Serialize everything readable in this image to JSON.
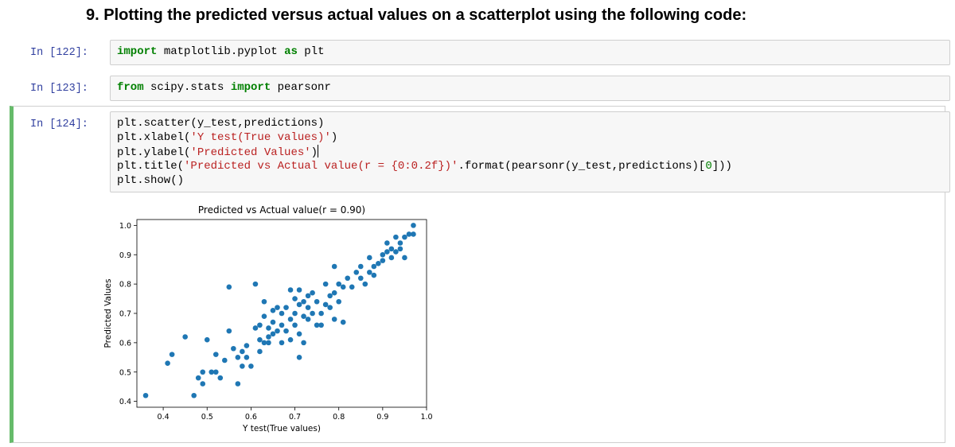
{
  "heading": "9. Plotting the predicted versus actual values on a scatterplot using the following code:",
  "cells": [
    {
      "prompt": "In [122]:",
      "lines": [
        [
          {
            "t": "import",
            "c": "kw"
          },
          {
            "t": " matplotlib.pyplot ",
            "c": ""
          },
          {
            "t": "as",
            "c": "kw"
          },
          {
            "t": " plt",
            "c": ""
          }
        ]
      ]
    },
    {
      "prompt": "In [123]:",
      "lines": [
        [
          {
            "t": "from",
            "c": "kw"
          },
          {
            "t": " scipy.stats ",
            "c": ""
          },
          {
            "t": "import",
            "c": "kw"
          },
          {
            "t": " pearsonr",
            "c": ""
          }
        ]
      ]
    },
    {
      "prompt": "In [124]:",
      "lines": [
        [
          {
            "t": "plt.scatter(y_test,predictions)",
            "c": ""
          }
        ],
        [
          {
            "t": "plt.xlabel(",
            "c": ""
          },
          {
            "t": "'Y test(True values)'",
            "c": "str"
          },
          {
            "t": ")",
            "c": ""
          }
        ],
        [
          {
            "t": "plt.ylabel(",
            "c": ""
          },
          {
            "t": "'Predicted Values'",
            "c": "str"
          },
          {
            "t": ")",
            "c": ""
          }
        ],
        [
          {
            "t": "plt.title(",
            "c": ""
          },
          {
            "t": "'Predicted vs Actual value(r = {0:0.2f})'",
            "c": "str"
          },
          {
            "t": ".format(pearsonr(y_test,predictions)[",
            "c": ""
          },
          {
            "t": "0",
            "c": "num"
          },
          {
            "t": "]))",
            "c": ""
          }
        ],
        [
          {
            "t": "plt.show()",
            "c": ""
          }
        ]
      ]
    }
  ],
  "chart_data": {
    "type": "scatter",
    "title": "Predicted vs Actual value(r = 0.90)",
    "xlabel": "Y test(True values)",
    "ylabel": "Predicted Values",
    "xlim": [
      0.34,
      1.0
    ],
    "ylim": [
      0.38,
      1.02
    ],
    "xticks": [
      "0.4",
      "0.5",
      "0.6",
      "0.7",
      "0.8",
      "0.9",
      "1.0"
    ],
    "yticks": [
      "0.4",
      "0.5",
      "0.6",
      "0.7",
      "0.8",
      "0.9",
      "1.0"
    ],
    "grid": false,
    "marker_color": "#1f77b4",
    "points": [
      [
        0.36,
        0.42
      ],
      [
        0.41,
        0.53
      ],
      [
        0.42,
        0.56
      ],
      [
        0.45,
        0.62
      ],
      [
        0.47,
        0.42
      ],
      [
        0.48,
        0.48
      ],
      [
        0.49,
        0.46
      ],
      [
        0.49,
        0.5
      ],
      [
        0.5,
        0.61
      ],
      [
        0.51,
        0.5
      ],
      [
        0.52,
        0.5
      ],
      [
        0.52,
        0.56
      ],
      [
        0.53,
        0.48
      ],
      [
        0.54,
        0.54
      ],
      [
        0.55,
        0.64
      ],
      [
        0.55,
        0.79
      ],
      [
        0.56,
        0.58
      ],
      [
        0.57,
        0.46
      ],
      [
        0.57,
        0.55
      ],
      [
        0.58,
        0.57
      ],
      [
        0.58,
        0.52
      ],
      [
        0.59,
        0.59
      ],
      [
        0.59,
        0.55
      ],
      [
        0.6,
        0.52
      ],
      [
        0.61,
        0.8
      ],
      [
        0.61,
        0.65
      ],
      [
        0.62,
        0.61
      ],
      [
        0.62,
        0.57
      ],
      [
        0.62,
        0.66
      ],
      [
        0.63,
        0.6
      ],
      [
        0.63,
        0.69
      ],
      [
        0.63,
        0.74
      ],
      [
        0.64,
        0.62
      ],
      [
        0.64,
        0.65
      ],
      [
        0.64,
        0.6
      ],
      [
        0.65,
        0.67
      ],
      [
        0.65,
        0.63
      ],
      [
        0.65,
        0.71
      ],
      [
        0.66,
        0.72
      ],
      [
        0.66,
        0.64
      ],
      [
        0.67,
        0.6
      ],
      [
        0.67,
        0.66
      ],
      [
        0.67,
        0.7
      ],
      [
        0.68,
        0.72
      ],
      [
        0.68,
        0.64
      ],
      [
        0.69,
        0.68
      ],
      [
        0.69,
        0.61
      ],
      [
        0.69,
        0.78
      ],
      [
        0.7,
        0.75
      ],
      [
        0.7,
        0.7
      ],
      [
        0.7,
        0.66
      ],
      [
        0.71,
        0.73
      ],
      [
        0.71,
        0.78
      ],
      [
        0.71,
        0.63
      ],
      [
        0.71,
        0.55
      ],
      [
        0.72,
        0.69
      ],
      [
        0.72,
        0.74
      ],
      [
        0.72,
        0.6
      ],
      [
        0.73,
        0.76
      ],
      [
        0.73,
        0.72
      ],
      [
        0.73,
        0.68
      ],
      [
        0.74,
        0.77
      ],
      [
        0.74,
        0.7
      ],
      [
        0.75,
        0.66
      ],
      [
        0.75,
        0.74
      ],
      [
        0.76,
        0.7
      ],
      [
        0.76,
        0.66
      ],
      [
        0.77,
        0.8
      ],
      [
        0.77,
        0.73
      ],
      [
        0.78,
        0.72
      ],
      [
        0.78,
        0.76
      ],
      [
        0.79,
        0.86
      ],
      [
        0.79,
        0.77
      ],
      [
        0.79,
        0.68
      ],
      [
        0.8,
        0.8
      ],
      [
        0.8,
        0.74
      ],
      [
        0.81,
        0.79
      ],
      [
        0.81,
        0.67
      ],
      [
        0.82,
        0.82
      ],
      [
        0.83,
        0.79
      ],
      [
        0.84,
        0.84
      ],
      [
        0.85,
        0.86
      ],
      [
        0.85,
        0.82
      ],
      [
        0.86,
        0.8
      ],
      [
        0.87,
        0.89
      ],
      [
        0.87,
        0.84
      ],
      [
        0.88,
        0.86
      ],
      [
        0.88,
        0.83
      ],
      [
        0.89,
        0.87
      ],
      [
        0.9,
        0.9
      ],
      [
        0.9,
        0.88
      ],
      [
        0.91,
        0.91
      ],
      [
        0.91,
        0.94
      ],
      [
        0.92,
        0.92
      ],
      [
        0.92,
        0.89
      ],
      [
        0.93,
        0.96
      ],
      [
        0.93,
        0.91
      ],
      [
        0.94,
        0.94
      ],
      [
        0.94,
        0.92
      ],
      [
        0.95,
        0.96
      ],
      [
        0.95,
        0.89
      ],
      [
        0.96,
        0.97
      ],
      [
        0.97,
        0.97
      ],
      [
        0.97,
        1.0
      ]
    ]
  }
}
